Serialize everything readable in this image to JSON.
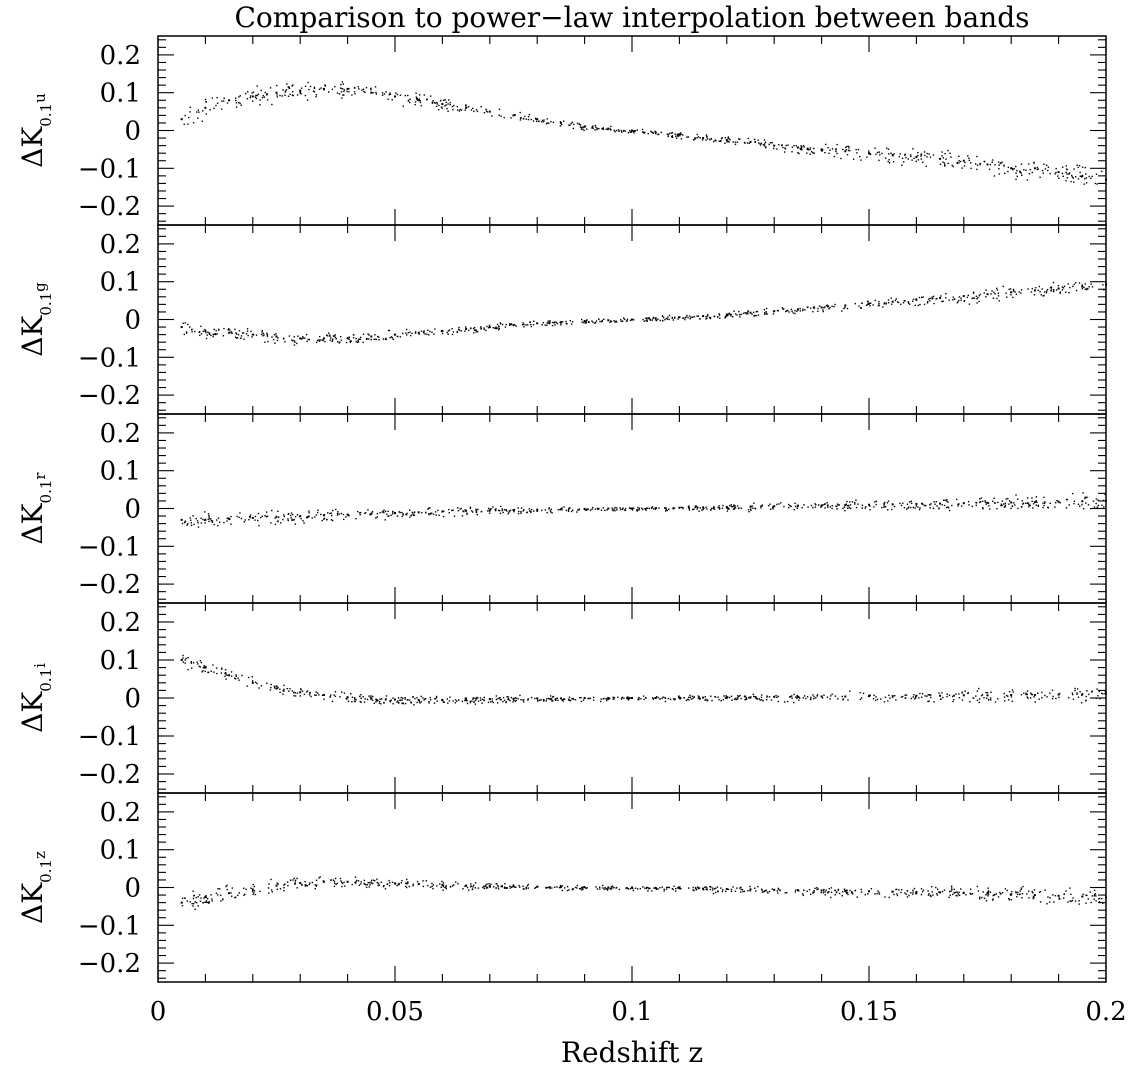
{
  "chart_data": {
    "type": "scatter",
    "title": "Comparison to power−law interpolation between bands",
    "xlabel": "Redshift z",
    "xlim": [
      0,
      0.2
    ],
    "x_ticks": [
      {
        "value": 0,
        "label": "0"
      },
      {
        "value": 0.05,
        "label": "0.05"
      },
      {
        "value": 0.1,
        "label": "0.1"
      },
      {
        "value": 0.15,
        "label": "0.15"
      },
      {
        "value": 0.2,
        "label": "0.2"
      }
    ],
    "ylim": [
      -0.25,
      0.25
    ],
    "y_ticks": [
      {
        "value": 0.2,
        "label": "0.2"
      },
      {
        "value": 0.1,
        "label": "0.1"
      },
      {
        "value": 0,
        "label": "0"
      },
      {
        "value": -0.1,
        "label": "−0.1"
      },
      {
        "value": -0.2,
        "label": "−0.2"
      }
    ],
    "grid": false,
    "panels": [
      {
        "band": "u",
        "ylabel": {
          "main": "ΔK",
          "sub": "0.1",
          "subsub": "u"
        },
        "series": [
          {
            "x": [
              0.005,
              0.01,
              0.015,
              0.02,
              0.025,
              0.03,
              0.035,
              0.04,
              0.045,
              0.05,
              0.055,
              0.06,
              0.065,
              0.07,
              0.075,
              0.08,
              0.085,
              0.09,
              0.095,
              0.1,
              0.105,
              0.11,
              0.115,
              0.12,
              0.125,
              0.13,
              0.135,
              0.14,
              0.145,
              0.15,
              0.155,
              0.16,
              0.165,
              0.17,
              0.175,
              0.18,
              0.185,
              0.19,
              0.195,
              0.2
            ],
            "y": [
              0.03,
              0.06,
              0.08,
              0.09,
              0.1,
              0.105,
              0.11,
              0.11,
              0.1,
              0.09,
              0.08,
              0.07,
              0.06,
              0.05,
              0.04,
              0.03,
              0.02,
              0.01,
              0.005,
              0,
              -0.005,
              -0.01,
              -0.02,
              -0.025,
              -0.03,
              -0.04,
              -0.045,
              -0.05,
              -0.055,
              -0.06,
              -0.065,
              -0.07,
              -0.075,
              -0.08,
              -0.09,
              -0.1,
              -0.1,
              -0.11,
              -0.12,
              -0.13
            ]
          }
        ]
      },
      {
        "band": "g",
        "ylabel": {
          "main": "ΔK",
          "sub": "0.1",
          "subsub": "g"
        },
        "series": [
          {
            "x": [
              0.005,
              0.01,
              0.015,
              0.02,
              0.025,
              0.03,
              0.035,
              0.04,
              0.045,
              0.05,
              0.055,
              0.06,
              0.065,
              0.07,
              0.075,
              0.08,
              0.085,
              0.09,
              0.095,
              0.1,
              0.105,
              0.11,
              0.115,
              0.12,
              0.125,
              0.13,
              0.135,
              0.14,
              0.145,
              0.15,
              0.155,
              0.16,
              0.165,
              0.17,
              0.175,
              0.18,
              0.185,
              0.19,
              0.195,
              0.2
            ],
            "y": [
              -0.02,
              -0.03,
              -0.035,
              -0.04,
              -0.045,
              -0.05,
              -0.05,
              -0.05,
              -0.045,
              -0.04,
              -0.035,
              -0.03,
              -0.025,
              -0.02,
              -0.015,
              -0.01,
              -0.007,
              -0.004,
              -0.002,
              0,
              0.003,
              0.006,
              0.009,
              0.013,
              0.018,
              0.022,
              0.027,
              0.032,
              0.037,
              0.042,
              0.047,
              0.052,
              0.057,
              0.062,
              0.067,
              0.072,
              0.077,
              0.082,
              0.087,
              0.092
            ]
          }
        ]
      },
      {
        "band": "r",
        "ylabel": {
          "main": "ΔK",
          "sub": "0.1",
          "subsub": "r"
        },
        "series": [
          {
            "x": [
              0.005,
              0.01,
              0.015,
              0.02,
              0.025,
              0.03,
              0.035,
              0.04,
              0.045,
              0.05,
              0.055,
              0.06,
              0.065,
              0.07,
              0.075,
              0.08,
              0.085,
              0.09,
              0.095,
              0.1,
              0.105,
              0.11,
              0.115,
              0.12,
              0.125,
              0.13,
              0.135,
              0.14,
              0.145,
              0.15,
              0.155,
              0.16,
              0.165,
              0.17,
              0.175,
              0.18,
              0.185,
              0.19,
              0.195,
              0.2
            ],
            "y": [
              -0.03,
              -0.03,
              -0.028,
              -0.025,
              -0.022,
              -0.02,
              -0.018,
              -0.016,
              -0.014,
              -0.012,
              -0.01,
              -0.008,
              -0.006,
              -0.005,
              -0.004,
              -0.003,
              -0.002,
              -0.001,
              0,
              0,
              0.001,
              0.002,
              0.003,
              0.004,
              0.005,
              0.006,
              0.007,
              0.008,
              0.009,
              0.01,
              0.011,
              0.012,
              0.013,
              0.014,
              0.015,
              0.016,
              0.017,
              0.018,
              0.019,
              0.02
            ]
          }
        ]
      },
      {
        "band": "i",
        "ylabel": {
          "main": "ΔK",
          "sub": "0.1",
          "subsub": "i"
        },
        "series": [
          {
            "x": [
              0.005,
              0.01,
              0.015,
              0.02,
              0.025,
              0.03,
              0.035,
              0.04,
              0.045,
              0.05,
              0.055,
              0.06,
              0.065,
              0.07,
              0.075,
              0.08,
              0.085,
              0.09,
              0.095,
              0.1,
              0.105,
              0.11,
              0.115,
              0.12,
              0.125,
              0.13,
              0.135,
              0.14,
              0.145,
              0.15,
              0.155,
              0.16,
              0.165,
              0.17,
              0.175,
              0.18,
              0.185,
              0.19,
              0.195,
              0.2
            ],
            "y": [
              0.1,
              0.08,
              0.06,
              0.04,
              0.025,
              0.015,
              0.008,
              0.002,
              -0.002,
              -0.004,
              -0.005,
              -0.005,
              -0.004,
              -0.003,
              -0.002,
              -0.001,
              -0.001,
              0,
              0,
              0,
              0,
              0.001,
              0.001,
              0.002,
              0.002,
              0.003,
              0.003,
              0.004,
              0.004,
              0.005,
              0.005,
              0.006,
              0.006,
              0.007,
              0.007,
              0.008,
              0.008,
              0.009,
              0.01,
              0.012
            ]
          }
        ]
      },
      {
        "band": "z",
        "ylabel": {
          "main": "ΔK",
          "sub": "0.1",
          "subsub": "z"
        },
        "series": [
          {
            "x": [
              0.005,
              0.01,
              0.015,
              0.02,
              0.025,
              0.03,
              0.035,
              0.04,
              0.045,
              0.05,
              0.055,
              0.06,
              0.065,
              0.07,
              0.075,
              0.08,
              0.085,
              0.09,
              0.095,
              0.1,
              0.105,
              0.11,
              0.115,
              0.12,
              0.125,
              0.13,
              0.135,
              0.14,
              0.145,
              0.15,
              0.155,
              0.16,
              0.165,
              0.17,
              0.175,
              0.18,
              0.185,
              0.19,
              0.195,
              0.2
            ],
            "y": [
              -0.04,
              -0.025,
              -0.015,
              -0.005,
              0.005,
              0.012,
              0.015,
              0.015,
              0.013,
              0.011,
              0.009,
              0.007,
              0.005,
              0.004,
              0.003,
              0.002,
              0.001,
              0.001,
              0,
              0,
              -0.001,
              -0.002,
              -0.003,
              -0.004,
              -0.005,
              -0.006,
              -0.007,
              -0.008,
              -0.009,
              -0.01,
              -0.011,
              -0.012,
              -0.013,
              -0.014,
              -0.016,
              -0.018,
              -0.02,
              -0.022,
              -0.024,
              -0.026
            ]
          }
        ]
      }
    ]
  }
}
